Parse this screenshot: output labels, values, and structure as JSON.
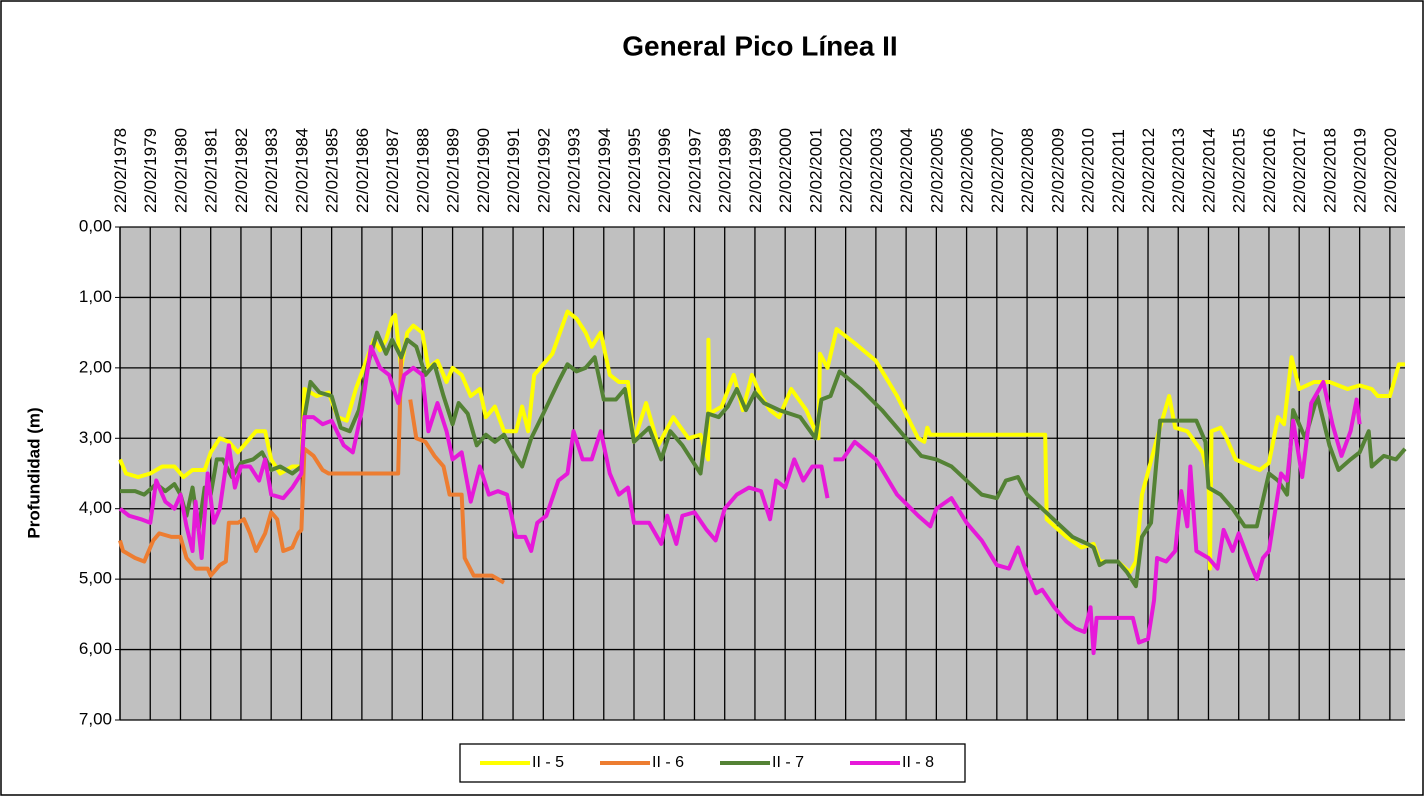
{
  "chart_data": {
    "type": "line",
    "title": "General Pico Línea II",
    "y_label": "Profundidad (m)",
    "xlim": [
      1978,
      2020.5
    ],
    "xticks": [
      {
        "value": 1978,
        "label": "22/02/1978"
      },
      {
        "value": 1979,
        "label": "22/02/1979"
      },
      {
        "value": 1980,
        "label": "22/02/1980"
      },
      {
        "value": 1981,
        "label": "22/02/1981"
      },
      {
        "value": 1982,
        "label": "22/02/1982"
      },
      {
        "value": 1983,
        "label": "22/02/1983"
      },
      {
        "value": 1984,
        "label": "22/02/1984"
      },
      {
        "value": 1985,
        "label": "22/02/1985"
      },
      {
        "value": 1986,
        "label": "22/02/1986"
      },
      {
        "value": 1987,
        "label": "22/02/1987"
      },
      {
        "value": 1988,
        "label": "22/02/1988"
      },
      {
        "value": 1989,
        "label": "22/02/1989"
      },
      {
        "value": 1990,
        "label": "22/02/1990"
      },
      {
        "value": 1991,
        "label": "22/02/1991"
      },
      {
        "value": 1992,
        "label": "22/02/1992"
      },
      {
        "value": 1993,
        "label": "22/02/1993"
      },
      {
        "value": 1994,
        "label": "22/02/1994"
      },
      {
        "value": 1995,
        "label": "22/02/1995"
      },
      {
        "value": 1996,
        "label": "22/02/1996"
      },
      {
        "value": 1997,
        "label": "22/02/1997"
      },
      {
        "value": 1998,
        "label": "22/02/1998"
      },
      {
        "value": 1999,
        "label": "22/02/1999"
      },
      {
        "value": 2000,
        "label": "22/02/2000"
      },
      {
        "value": 2001,
        "label": "22/02/2001"
      },
      {
        "value": 2002,
        "label": "22/02/2002"
      },
      {
        "value": 2003,
        "label": "22/02/2003"
      },
      {
        "value": 2004,
        "label": "22/02/2004"
      },
      {
        "value": 2005,
        "label": "22/02/2005"
      },
      {
        "value": 2006,
        "label": "22/02/2006"
      },
      {
        "value": 2007,
        "label": "22/02/2007"
      },
      {
        "value": 2008,
        "label": "22/02/2008"
      },
      {
        "value": 2009,
        "label": "22/02/2009"
      },
      {
        "value": 2010,
        "label": "22/02/2010"
      },
      {
        "value": 2011,
        "label": "22/02/2011"
      },
      {
        "value": 2012,
        "label": "22/02/2012"
      },
      {
        "value": 2013,
        "label": "22/02/2013"
      },
      {
        "value": 2014,
        "label": "22/02/2014"
      },
      {
        "value": 2015,
        "label": "22/02/2015"
      },
      {
        "value": 2016,
        "label": "22/02/2016"
      },
      {
        "value": 2017,
        "label": "22/02/2017"
      },
      {
        "value": 2018,
        "label": "22/02/2018"
      },
      {
        "value": 2019,
        "label": "22/02/2019"
      },
      {
        "value": 2020,
        "label": "22/02/2020"
      }
    ],
    "ylim": [
      0,
      7
    ],
    "y_inverted": true,
    "yticks": [
      {
        "value": 0,
        "label": "0,00"
      },
      {
        "value": 1,
        "label": "1,00"
      },
      {
        "value": 2,
        "label": "2,00"
      },
      {
        "value": 3,
        "label": "3,00"
      },
      {
        "value": 4,
        "label": "4,00"
      },
      {
        "value": 5,
        "label": "5,00"
      },
      {
        "value": 6,
        "label": "6,00"
      },
      {
        "value": 7,
        "label": "7,00"
      }
    ],
    "grid": true,
    "legend": "bottom",
    "series": [
      {
        "name": "II - 5",
        "color": "#ffff00",
        "x": [
          1978.0,
          1978.2,
          1978.6,
          1979.0,
          1979.4,
          1979.8,
          1980.1,
          1980.4,
          1980.8,
          1981.0,
          1981.3,
          1981.6,
          1981.9,
          1982.2,
          1982.5,
          1982.8,
          1983.0,
          1983.3,
          1983.7,
          1984.0,
          1984.1,
          1984.5,
          1984.9,
          1985.2,
          1985.5,
          1985.8,
          1986.1,
          1986.4,
          1986.6,
          1986.8,
          1987.0,
          1987.1,
          1987.3,
          1987.5,
          1987.7,
          1988.0,
          1988.2,
          1988.5,
          1988.8,
          1989.0,
          1989.3,
          1989.6,
          1989.9,
          1990.1,
          1990.4,
          1990.7,
          1991.1,
          1991.3,
          1991.5,
          1991.7,
          1992.0,
          1992.3,
          1992.8,
          1993.1,
          1993.4,
          1993.6,
          1993.9,
          1994.2,
          1994.5,
          1994.8,
          1995.0,
          1995.4,
          1995.8,
          1996.3,
          1996.8,
          1997.2,
          1997.45,
          1997.46,
          1997.5,
          1997.9,
          1998.3,
          1998.6,
          1998.9,
          1999.2,
          1999.5,
          1999.8,
          2000.2,
          2000.7,
          2001.1,
          2001.15,
          2001.4,
          2001.7,
          2002.3,
          2003.0,
          2003.7,
          2004.4,
          2004.6,
          2004.7,
          2004.8,
          2008.6,
          2008.65,
          2009.3,
          2009.8,
          2010.2,
          2010.4,
          2011.0,
          2011.4,
          2011.6,
          2011.8,
          2012.3,
          2012.7,
          2012.9,
          2013.3,
          2013.8,
          2014.0,
          2014.05,
          2014.1,
          2014.4,
          2014.6,
          2014.9,
          2015.4,
          2015.7,
          2016.0,
          2016.3,
          2016.5,
          2016.75,
          2017.0,
          2017.5,
          2018.0,
          2018.3,
          2018.6,
          2019.0,
          2019.4,
          2019.6,
          2020.0,
          2020.3,
          2020.5
        ],
        "values": [
          3.3,
          3.5,
          3.55,
          3.5,
          3.4,
          3.4,
          3.55,
          3.45,
          3.45,
          3.2,
          3.0,
          3.05,
          3.2,
          3.05,
          2.9,
          2.9,
          3.3,
          3.5,
          3.4,
          3.4,
          2.3,
          2.4,
          2.35,
          2.7,
          2.75,
          2.3,
          1.95,
          1.6,
          1.75,
          1.6,
          1.3,
          1.25,
          2.0,
          1.5,
          1.4,
          1.5,
          2.0,
          1.9,
          2.2,
          2.0,
          2.1,
          2.4,
          2.3,
          2.7,
          2.55,
          2.9,
          2.9,
          2.55,
          2.9,
          2.1,
          1.95,
          1.8,
          1.2,
          1.3,
          1.5,
          1.7,
          1.5,
          2.1,
          2.2,
          2.2,
          3.05,
          2.5,
          3.1,
          2.7,
          3.0,
          2.95,
          3.3,
          1.6,
          2.65,
          2.55,
          2.1,
          2.6,
          2.1,
          2.4,
          2.6,
          2.7,
          2.3,
          2.6,
          3.0,
          1.8,
          2.0,
          1.45,
          1.65,
          1.9,
          2.4,
          3.0,
          3.05,
          2.85,
          2.95,
          2.95,
          4.15,
          4.4,
          4.55,
          4.5,
          4.75,
          4.75,
          4.9,
          4.75,
          3.8,
          3.0,
          2.4,
          2.85,
          2.9,
          3.2,
          3.5,
          4.85,
          2.9,
          2.85,
          3.0,
          3.3,
          3.4,
          3.45,
          3.35,
          2.7,
          2.8,
          1.85,
          2.3,
          2.2,
          2.2,
          2.25,
          2.3,
          2.25,
          2.3,
          2.4,
          2.4,
          1.95,
          1.95
        ]
      },
      {
        "name": "II - 6",
        "color": "#ed7d31",
        "x": [
          1978.0,
          1978.1,
          1978.5,
          1978.8,
          1979.1,
          1979.3,
          1979.7,
          1980.0,
          1980.2,
          1980.5,
          1980.9,
          1981.0,
          1981.3,
          1981.5,
          1981.6,
          1981.9,
          1982.1,
          1982.3,
          1982.5,
          1982.8,
          1983.0,
          1983.2,
          1983.4,
          1983.7,
          1983.9,
          1984.0,
          1984.1,
          1984.4,
          1984.7,
          1984.9,
          1987.2,
          1987.3,
          null,
          1987.6,
          1987.8,
          1988.1,
          1988.4,
          1988.7,
          1988.9,
          1989.3,
          1989.4,
          1989.7,
          1990.3,
          1990.5,
          1990.7
        ],
        "values": [
          4.45,
          4.6,
          4.7,
          4.75,
          4.45,
          4.35,
          4.4,
          4.4,
          4.7,
          4.85,
          4.85,
          4.95,
          4.8,
          4.75,
          4.2,
          4.2,
          4.15,
          4.35,
          4.6,
          4.35,
          4.05,
          4.15,
          4.6,
          4.55,
          4.35,
          4.3,
          3.15,
          3.25,
          3.45,
          3.5,
          3.5,
          1.85,
          null,
          2.45,
          3.0,
          3.05,
          3.25,
          3.4,
          3.8,
          3.8,
          4.7,
          4.95,
          4.95,
          5.0,
          5.05
        ]
      },
      {
        "name": "II - 7",
        "color": "#548235",
        "x": [
          1978.0,
          1978.5,
          1978.8,
          1979.2,
          1979.5,
          1979.8,
          1980.0,
          1980.2,
          1980.4,
          1980.6,
          1980.8,
          1981.0,
          1981.2,
          1981.4,
          1981.7,
          1982.0,
          1982.4,
          1982.7,
          1983.0,
          1983.3,
          1983.7,
          1984.0,
          1984.1,
          1984.3,
          1984.6,
          1985.0,
          1985.3,
          1985.6,
          1985.9,
          1986.2,
          1986.5,
          1986.8,
          1987.0,
          1987.3,
          1987.5,
          1987.8,
          1988.1,
          1988.4,
          1988.7,
          1989.0,
          1989.2,
          1989.5,
          1989.8,
          1990.1,
          1990.4,
          1990.7,
          1991.0,
          1991.3,
          1991.6,
          1992.0,
          1992.5,
          1992.8,
          1993.1,
          1993.4,
          1993.7,
          1994.0,
          1994.4,
          1994.7,
          1995.0,
          1995.5,
          1995.9,
          1996.2,
          1996.6,
          1996.9,
          1997.2,
          1997.45,
          1997.8,
          1998.1,
          1998.4,
          1998.7,
          1999.0,
          1999.3,
          1999.8,
          2000.5,
          2001.0,
          2001.2,
          2001.5,
          2001.8,
          2002.5,
          2003.2,
          2003.9,
          2004.5,
          2005.0,
          2005.5,
          2006.0,
          2006.5,
          2007.0,
          2007.3,
          2007.7,
          2008.0,
          2008.5,
          2009.0,
          2009.5,
          2010.0,
          2010.2,
          2010.4,
          2010.6,
          2011.0,
          2011.3,
          2011.6,
          2011.8,
          2012.1,
          2012.4,
          2013.6,
          2013.9,
          2014.0,
          2014.4,
          2014.8,
          2015.2,
          2015.6,
          2016.0,
          2016.3,
          2016.6,
          2016.8,
          2017.2,
          2017.6,
          2018.0,
          2018.3,
          2018.7,
          2019.0,
          2019.3,
          2019.4,
          2019.8,
          2020.2,
          2020.5
        ],
        "values": [
          3.75,
          3.75,
          3.8,
          3.65,
          3.75,
          3.65,
          3.8,
          4.1,
          3.7,
          4.3,
          3.7,
          3.8,
          3.3,
          3.3,
          3.55,
          3.35,
          3.3,
          3.2,
          3.45,
          3.4,
          3.5,
          3.4,
          2.7,
          2.2,
          2.35,
          2.4,
          2.85,
          2.9,
          2.6,
          1.95,
          1.5,
          1.8,
          1.6,
          1.85,
          1.6,
          1.7,
          2.1,
          1.95,
          2.4,
          2.8,
          2.5,
          2.65,
          3.1,
          2.95,
          3.05,
          2.95,
          3.2,
          3.4,
          3.0,
          2.65,
          2.2,
          1.95,
          2.05,
          2.0,
          1.85,
          2.45,
          2.45,
          2.3,
          3.05,
          2.85,
          3.3,
          2.9,
          3.1,
          3.3,
          3.5,
          2.65,
          2.7,
          2.55,
          2.3,
          2.6,
          2.35,
          2.5,
          2.6,
          2.7,
          3.0,
          2.45,
          2.4,
          2.05,
          2.3,
          2.6,
          2.95,
          3.25,
          3.3,
          3.4,
          3.6,
          3.8,
          3.85,
          3.6,
          3.55,
          3.8,
          4.0,
          4.2,
          4.4,
          4.5,
          4.55,
          4.8,
          4.75,
          4.75,
          4.9,
          5.1,
          4.4,
          4.2,
          2.75,
          2.75,
          3.05,
          3.7,
          3.8,
          4.0,
          4.25,
          4.25,
          3.5,
          3.6,
          3.8,
          2.6,
          3.0,
          2.4,
          3.1,
          3.45,
          3.3,
          3.2,
          2.9,
          3.4,
          3.25,
          3.3,
          3.15
        ]
      },
      {
        "name": "II - 8",
        "color": "#e619d9",
        "x": [
          1978.0,
          1978.3,
          1978.7,
          1979.0,
          1979.2,
          1979.5,
          1979.8,
          1980.0,
          1980.2,
          1980.4,
          1980.5,
          1980.7,
          1980.9,
          1981.1,
          1981.3,
          1981.6,
          1981.8,
          1982.0,
          1982.3,
          1982.6,
          1982.8,
          1983.0,
          1983.4,
          1983.7,
          1984.0,
          1984.1,
          1984.4,
          1984.7,
          1985.0,
          1985.4,
          1985.7,
          1986.0,
          1986.3,
          1986.6,
          1986.9,
          1987.2,
          1987.4,
          1987.7,
          1988.0,
          1988.2,
          1988.5,
          1988.8,
          1989.0,
          1989.3,
          1989.6,
          1989.9,
          1990.2,
          1990.5,
          1990.8,
          1991.1,
          1991.4,
          1991.6,
          1991.8,
          1992.1,
          1992.5,
          1992.8,
          1993.0,
          1993.3,
          1993.6,
          1993.9,
          1994.2,
          1994.5,
          1994.8,
          1995.0,
          1995.5,
          1995.9,
          1996.1,
          1996.4,
          1996.6,
          1997.0,
          1997.4,
          1997.7,
          1998.0,
          1998.4,
          1998.8,
          1999.2,
          1999.5,
          1999.7,
          2000.0,
          2000.3,
          2000.6,
          2000.9,
          2001.2,
          2001.4,
          null,
          2001.6,
          2001.9,
          2002.3,
          2003.0,
          2003.7,
          2004.4,
          2004.8,
          2005.0,
          2005.5,
          2006.0,
          2006.5,
          2007.0,
          2007.4,
          2007.7,
          2007.9,
          2008.3,
          2008.5,
          2008.9,
          2009.3,
          2009.6,
          2009.9,
          2010.1,
          2010.2,
          2010.3,
          2011.0,
          2011.5,
          2011.7,
          2012.0,
          2012.2,
          2012.3,
          2012.6,
          2012.9,
          2013.1,
          2013.3,
          2013.4,
          2013.6,
          2014.0,
          2014.3,
          2014.5,
          2014.8,
          2015.0,
          2015.4,
          2015.6,
          2015.8,
          2016.0,
          2016.4,
          2016.6,
          2016.8,
          2017.1,
          2017.4,
          2017.8,
          2018.1,
          2018.4,
          2018.7,
          2018.9,
          2019.0
        ],
        "values": [
          4.0,
          4.1,
          4.15,
          4.2,
          3.6,
          3.9,
          4.0,
          3.8,
          4.25,
          4.6,
          3.9,
          4.7,
          3.5,
          4.2,
          4.0,
          3.1,
          3.7,
          3.4,
          3.4,
          3.6,
          3.3,
          3.8,
          3.85,
          3.7,
          3.5,
          2.7,
          2.7,
          2.8,
          2.75,
          3.1,
          3.2,
          2.6,
          1.7,
          2.0,
          2.1,
          2.5,
          2.1,
          2.0,
          2.1,
          2.9,
          2.5,
          2.9,
          3.3,
          3.2,
          3.9,
          3.4,
          3.8,
          3.75,
          3.8,
          4.4,
          4.4,
          4.6,
          4.2,
          4.1,
          3.6,
          3.5,
          2.9,
          3.3,
          3.3,
          2.9,
          3.5,
          3.8,
          3.7,
          4.2,
          4.2,
          4.5,
          4.1,
          4.5,
          4.1,
          4.05,
          4.3,
          4.45,
          4.0,
          3.8,
          3.7,
          3.75,
          4.15,
          3.6,
          3.7,
          3.3,
          3.6,
          3.4,
          3.4,
          3.85,
          null,
          3.3,
          3.3,
          3.05,
          3.3,
          3.8,
          4.1,
          4.25,
          4.0,
          3.85,
          4.2,
          4.45,
          4.8,
          4.85,
          4.55,
          4.8,
          5.2,
          5.15,
          5.4,
          5.6,
          5.7,
          5.75,
          5.4,
          6.05,
          5.55,
          5.55,
          5.55,
          5.9,
          5.85,
          5.3,
          4.7,
          4.75,
          4.6,
          3.75,
          4.25,
          3.4,
          4.6,
          4.7,
          4.85,
          4.3,
          4.6,
          4.35,
          4.8,
          5.0,
          4.7,
          4.6,
          3.5,
          3.6,
          2.75,
          3.55,
          2.5,
          2.2,
          2.8,
          3.25,
          2.9,
          2.45,
          2.8
        ]
      }
    ]
  }
}
